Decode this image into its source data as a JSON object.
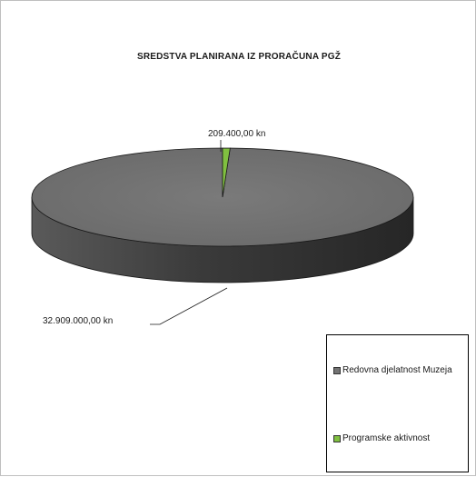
{
  "chart_data": {
    "type": "pie",
    "title": "SREDSTVA  PLANIRANA  IZ PRORAČUNA  PGŽ",
    "categories": [
      "Redovna djelatnost Muzeja",
      "Programske aktivnost"
    ],
    "values": [
      32909000,
      209400
    ],
    "data_labels": [
      "32.909.000,00 kn",
      "209.400,00 kn"
    ],
    "colors": [
      "#737373",
      "#80c040"
    ],
    "style": "3d",
    "legend_placement": "bottom-right"
  }
}
